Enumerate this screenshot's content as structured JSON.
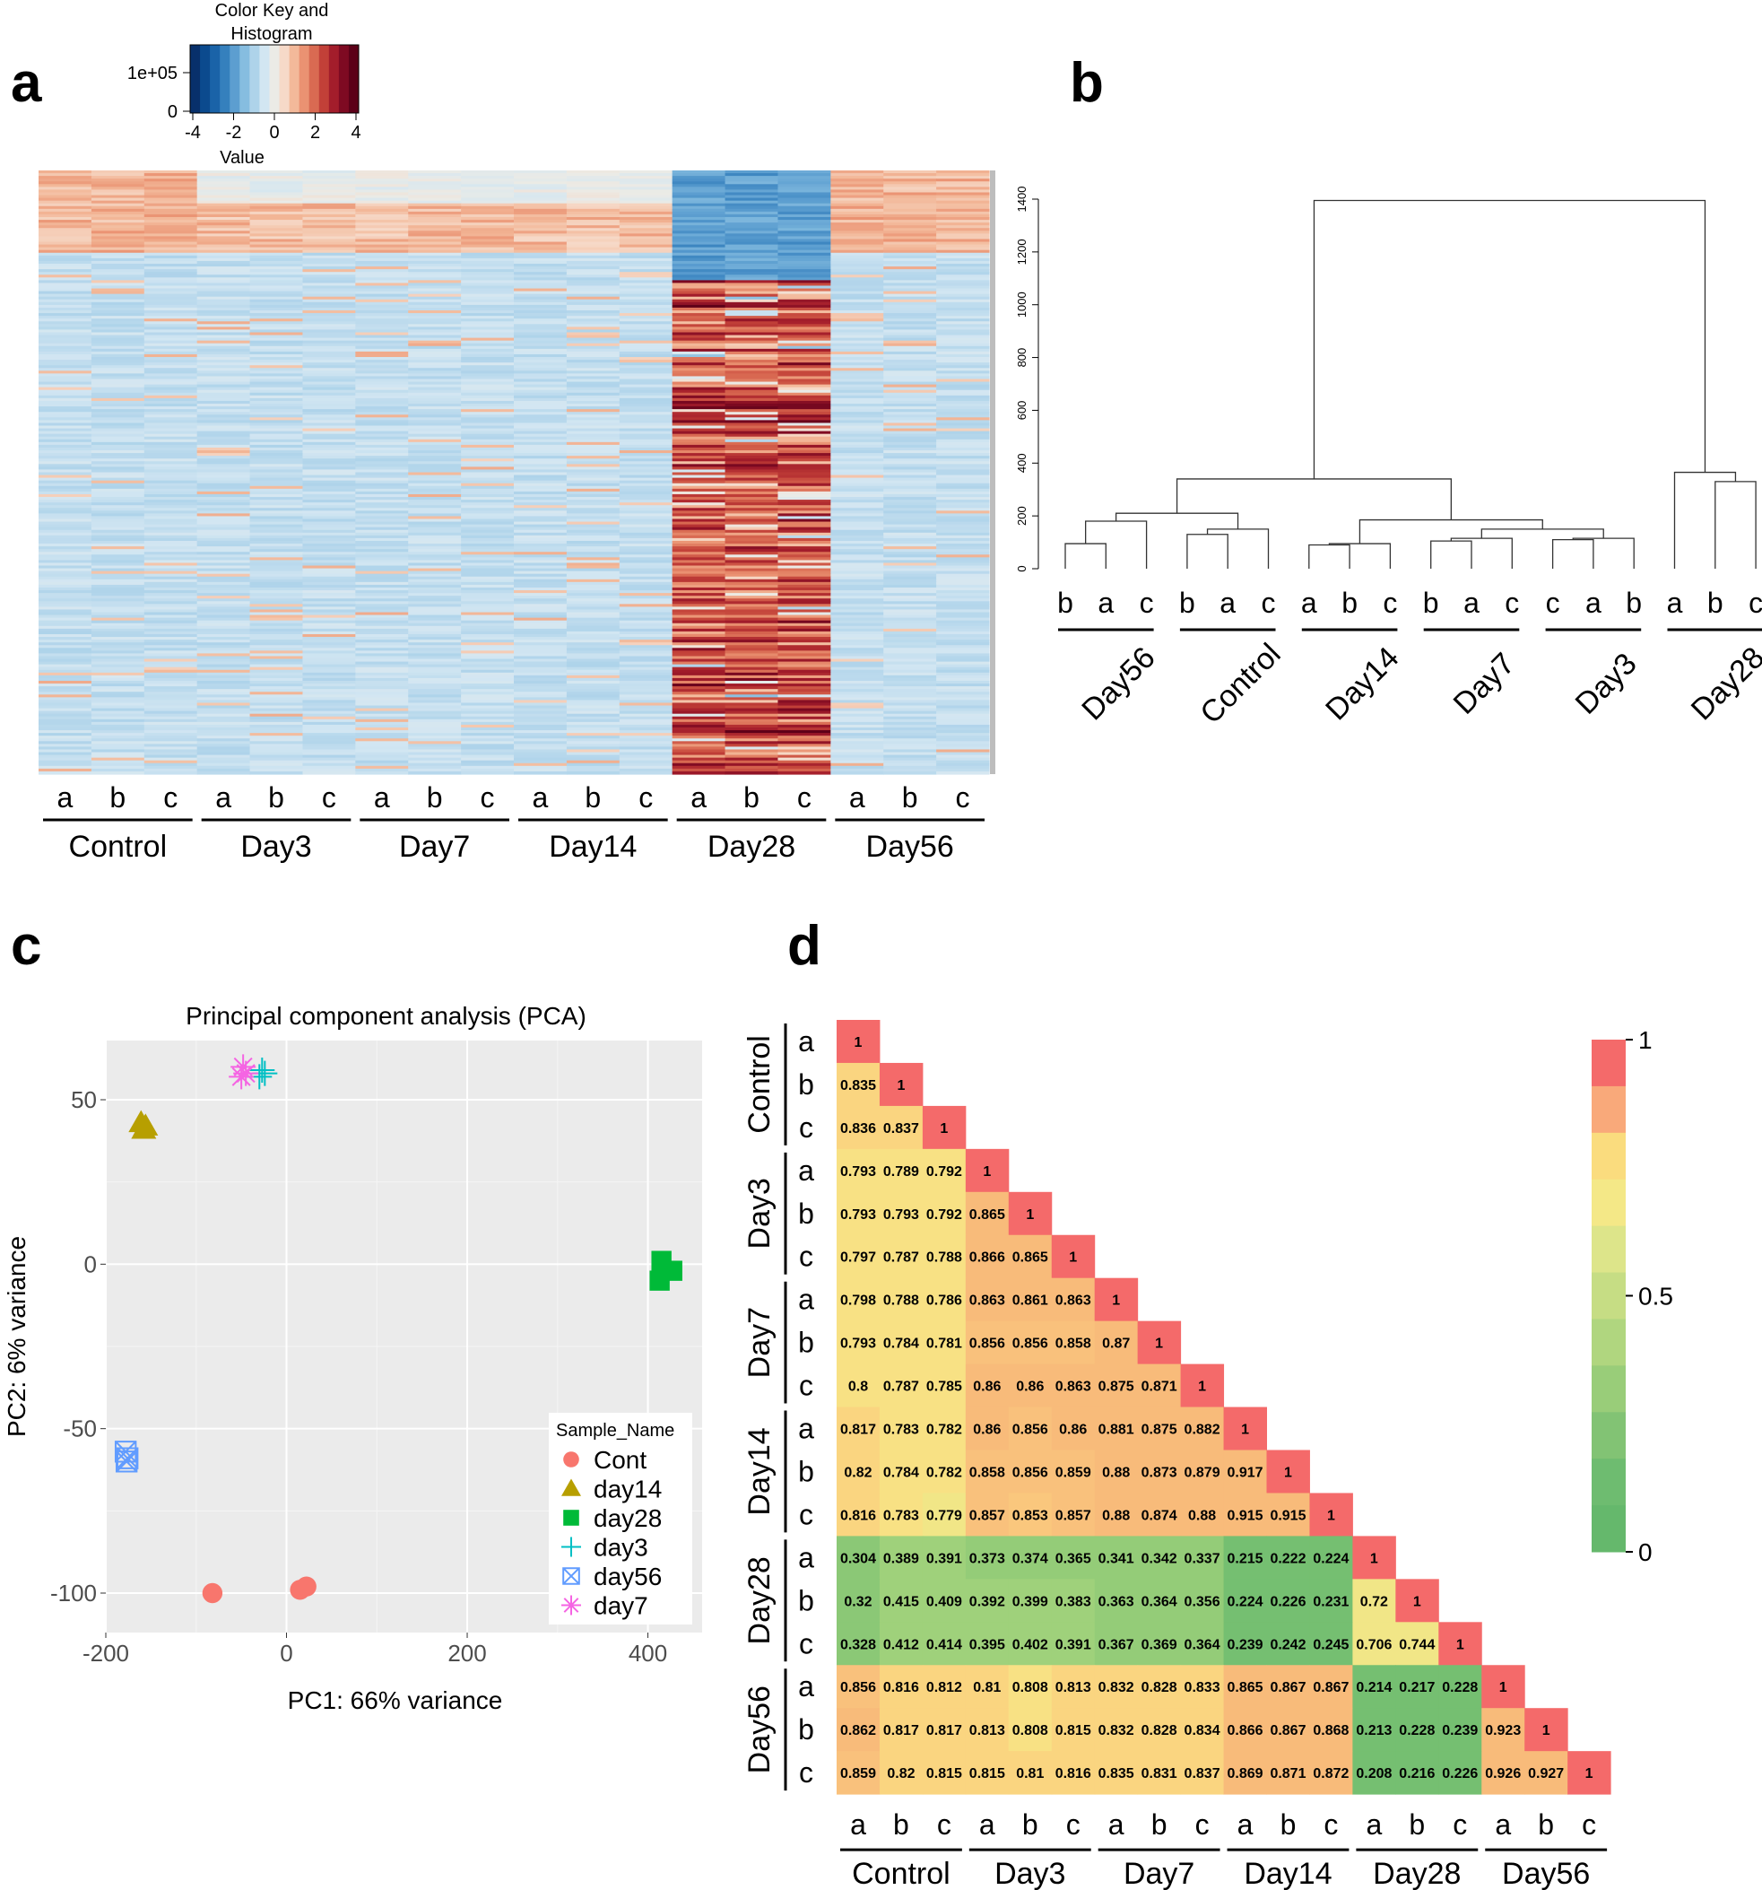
{
  "panel_labels": {
    "a": "a",
    "b": "b",
    "c": "c",
    "d": "d"
  },
  "replicates": [
    "a",
    "b",
    "c"
  ],
  "groups": [
    "Control",
    "Day3",
    "Day7",
    "Day14",
    "Day28",
    "Day56"
  ],
  "chart_data": [
    {
      "panel": "a",
      "type": "heatmap",
      "title": "",
      "color_key": {
        "title_line1": "Color Key and",
        "title_line2": "Histogram",
        "xlabel": "Value",
        "ticks": [
          "-4",
          "-2",
          "0",
          "2",
          "4"
        ],
        "y_ticks": [
          "1e+05",
          "0"
        ],
        "range": [
          -4,
          4
        ],
        "palette": [
          "#08306b",
          "#0b4a8e",
          "#1a63a8",
          "#3580bd",
          "#5c9ed0",
          "#86bde0",
          "#aed3ea",
          "#d2e6f2",
          "#ebebe6",
          "#f6d9c8",
          "#f3b99a",
          "#ea9272",
          "#d96a52",
          "#c24038",
          "#a31d2b",
          "#7e0a22",
          "#5c0018"
        ]
      },
      "columns": [
        "Control a",
        "Control b",
        "Control c",
        "Day3 a",
        "Day3 b",
        "Day3 c",
        "Day7 a",
        "Day7 b",
        "Day7 c",
        "Day14 a",
        "Day14 b",
        "Day14 c",
        "Day28 a",
        "Day28 b",
        "Day28 c",
        "Day56 a",
        "Day56 b",
        "Day56 c"
      ]
    },
    {
      "panel": "b",
      "type": "dendrogram",
      "y_ticks": [
        0,
        200,
        400,
        600,
        800,
        1000,
        1200,
        1400
      ],
      "ylim": [
        0,
        1400
      ],
      "leaf_groups": [
        {
          "label": "Day56",
          "leaves": [
            "b",
            "a",
            "c"
          ]
        },
        {
          "label": "Control",
          "leaves": [
            "b",
            "a",
            "c"
          ]
        },
        {
          "label": "Day14",
          "leaves": [
            "a",
            "b",
            "c"
          ]
        },
        {
          "label": "Day7",
          "leaves": [
            "b",
            "a",
            "c"
          ]
        },
        {
          "label": "Day3",
          "leaves": [
            "c",
            "a",
            "b"
          ]
        },
        {
          "label": "Day28",
          "leaves": [
            "a",
            "b",
            "c"
          ]
        }
      ],
      "merge_heights": {
        "Day56": [
          95,
          180
        ],
        "Control": [
          130,
          150
        ],
        "Day14": [
          90,
          95
        ],
        "Day7": [
          105,
          115
        ],
        "Day3": [
          110,
          115
        ],
        "Day28": [
          330,
          365
        ],
        "Day56_Control": 210,
        "Day7_Day3": 150,
        "Day7_Day3_inner": 145,
        "Day14_Day7_Day3": 185,
        "Left_all": 340,
        "Root": 1395
      }
    },
    {
      "panel": "c",
      "type": "scatter",
      "title": "Principal component analysis (PCA)",
      "xlabel": "PC1: 66% variance",
      "ylabel": "PC2: 6% variance",
      "xlim": [
        -200,
        460
      ],
      "ylim": [
        -112,
        68
      ],
      "x_ticks": [
        -200,
        0,
        200,
        400
      ],
      "y_ticks": [
        -100,
        -50,
        0,
        50
      ],
      "legend_title": "Sample_Name",
      "series": [
        {
          "name": "Cont",
          "color": "#f8766d",
          "marker": "circle",
          "points": [
            [
              -82,
              -100
            ],
            [
              15,
              -99
            ],
            [
              22,
              -98
            ]
          ]
        },
        {
          "name": "day14",
          "color": "#b79f00",
          "marker": "triangle",
          "points": [
            [
              -161,
              43
            ],
            [
              -158,
              41
            ],
            [
              -156,
              42
            ]
          ]
        },
        {
          "name": "day28",
          "color": "#00ba38",
          "marker": "square",
          "points": [
            [
              415,
              1
            ],
            [
              427,
              -2
            ],
            [
              413,
              -5
            ]
          ]
        },
        {
          "name": "day3",
          "color": "#00bfc4",
          "marker": "plus",
          "points": [
            [
              -27,
              59
            ],
            [
              -30,
              57
            ],
            [
              -24,
              58
            ]
          ]
        },
        {
          "name": "day56",
          "color": "#619cff",
          "marker": "boxx",
          "points": [
            [
              -178,
              -57
            ],
            [
              -176,
              -59
            ],
            [
              -177,
              -60
            ]
          ]
        },
        {
          "name": "day7",
          "color": "#f564e3",
          "marker": "star",
          "points": [
            [
              -48,
              60
            ],
            [
              -45,
              58
            ],
            [
              -50,
              57
            ]
          ]
        }
      ]
    },
    {
      "panel": "d",
      "type": "heatmap",
      "title": "",
      "colorbar_ticks": [
        "1",
        "0.5",
        "0"
      ],
      "colorbar_colors": [
        "#f46a6a",
        "#f9a97a",
        "#fadc7e",
        "#f4e887",
        "#dde58a",
        "#c6dd84",
        "#b0d67f",
        "#99cd79",
        "#82c374",
        "#6ebc70",
        "#65b86c"
      ],
      "labels": [
        "Control a",
        "Control b",
        "Control c",
        "Day3 a",
        "Day3 b",
        "Day3 c",
        "Day7 a",
        "Day7 b",
        "Day7 c",
        "Day14 a",
        "Day14 b",
        "Day14 c",
        "Day28 a",
        "Day28 b",
        "Day28 c",
        "Day56 a",
        "Day56 b",
        "Day56 c"
      ],
      "lower_triangle": [
        [
          "1"
        ],
        [
          "0.835",
          "1"
        ],
        [
          "0.836",
          "0.837",
          "1"
        ],
        [
          "0.793",
          "0.789",
          "0.792",
          "1"
        ],
        [
          "0.793",
          "0.793",
          "0.792",
          "0.865",
          "1"
        ],
        [
          "0.797",
          "0.787",
          "0.788",
          "0.866",
          "0.865",
          "1"
        ],
        [
          "0.798",
          "0.788",
          "0.786",
          "0.863",
          "0.861",
          "0.863",
          "1"
        ],
        [
          "0.793",
          "0.784",
          "0.781",
          "0.856",
          "0.856",
          "0.858",
          "0.87",
          "1"
        ],
        [
          "0.8",
          "0.787",
          "0.785",
          "0.86",
          "0.86",
          "0.863",
          "0.875",
          "0.871",
          "1"
        ],
        [
          "0.817",
          "0.783",
          "0.782",
          "0.86",
          "0.856",
          "0.86",
          "0.881",
          "0.875",
          "0.882",
          "1"
        ],
        [
          "0.82",
          "0.784",
          "0.782",
          "0.858",
          "0.856",
          "0.859",
          "0.88",
          "0.873",
          "0.879",
          "0.917",
          "1"
        ],
        [
          "0.816",
          "0.783",
          "0.779",
          "0.857",
          "0.853",
          "0.857",
          "0.88",
          "0.874",
          "0.88",
          "0.915",
          "0.915",
          "1"
        ],
        [
          "0.304",
          "0.389",
          "0.391",
          "0.373",
          "0.374",
          "0.365",
          "0.341",
          "0.342",
          "0.337",
          "0.215",
          "0.222",
          "0.224",
          "1"
        ],
        [
          "0.32",
          "0.415",
          "0.409",
          "0.392",
          "0.399",
          "0.383",
          "0.363",
          "0.364",
          "0.356",
          "0.224",
          "0.226",
          "0.231",
          "0.72",
          "1"
        ],
        [
          "0.328",
          "0.412",
          "0.414",
          "0.395",
          "0.402",
          "0.391",
          "0.367",
          "0.369",
          "0.364",
          "0.239",
          "0.242",
          "0.245",
          "0.706",
          "0.744",
          "1"
        ],
        [
          "0.856",
          "0.816",
          "0.812",
          "0.81",
          "0.808",
          "0.813",
          "0.832",
          "0.828",
          "0.833",
          "0.865",
          "0.867",
          "0.867",
          "0.214",
          "0.217",
          "0.228",
          "1"
        ],
        [
          "0.862",
          "0.817",
          "0.817",
          "0.813",
          "0.808",
          "0.815",
          "0.832",
          "0.828",
          "0.834",
          "0.866",
          "0.867",
          "0.868",
          "0.213",
          "0.228",
          "0.239",
          "0.923",
          "1"
        ],
        [
          "0.859",
          "0.82",
          "0.815",
          "0.815",
          "0.81",
          "0.816",
          "0.835",
          "0.831",
          "0.837",
          "0.869",
          "0.871",
          "0.872",
          "0.208",
          "0.216",
          "0.226",
          "0.926",
          "0.927",
          "1"
        ]
      ]
    }
  ]
}
